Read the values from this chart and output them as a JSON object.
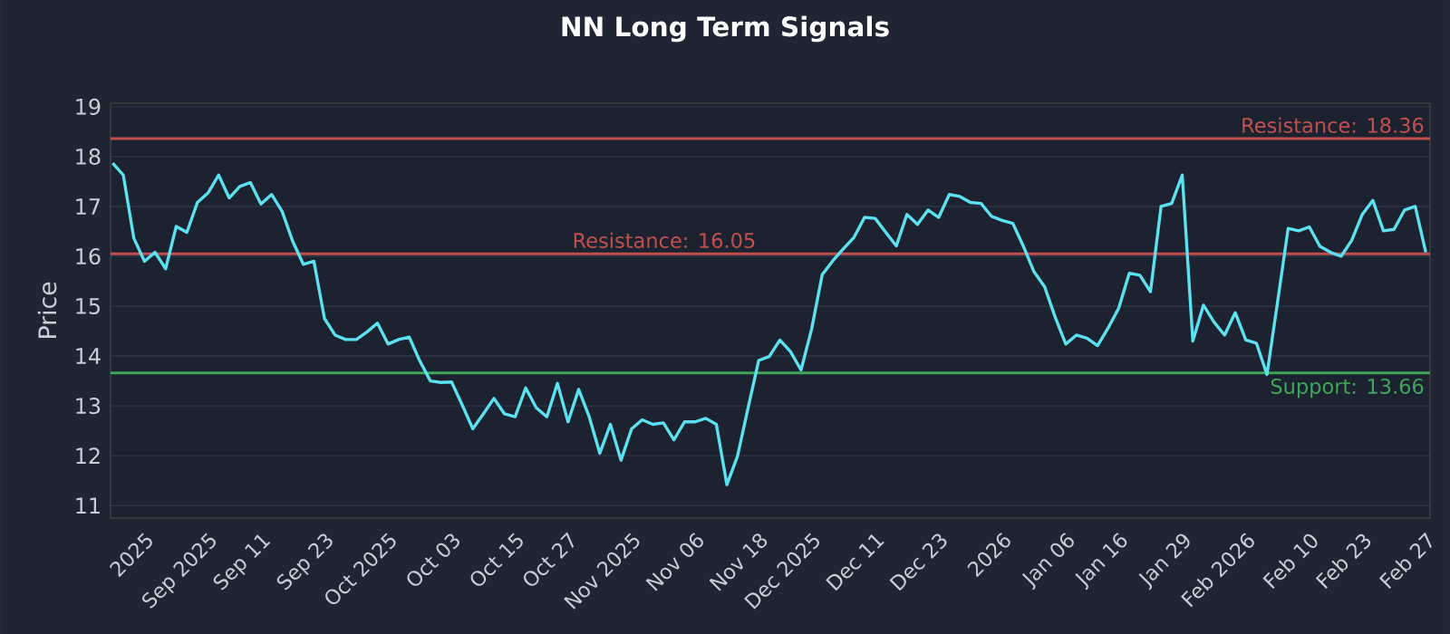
{
  "chart_data": {
    "type": "line",
    "title": "NN Long Term Signals",
    "ylabel": "Price",
    "categories": [
      null,
      null,
      null,
      "2025",
      null,
      null,
      null,
      null,
      null,
      "Sep 2025",
      null,
      null,
      null,
      null,
      "Sep 11",
      null,
      null,
      null,
      null,
      null,
      "Sep 23",
      null,
      null,
      null,
      null,
      null,
      "Oct 2025",
      null,
      null,
      null,
      null,
      null,
      "Oct 03",
      null,
      null,
      null,
      null,
      null,
      "Oct 15",
      null,
      null,
      null,
      null,
      "Oct 27",
      null,
      null,
      null,
      null,
      null,
      "Nov 2025",
      null,
      null,
      null,
      null,
      null,
      "Nov 06",
      null,
      null,
      null,
      null,
      null,
      "Nov 18",
      null,
      null,
      null,
      null,
      "Dec 2025",
      null,
      null,
      null,
      null,
      null,
      "Dec 11",
      null,
      null,
      null,
      null,
      null,
      "Dec 23",
      null,
      null,
      null,
      null,
      null,
      "2026",
      null,
      null,
      null,
      null,
      null,
      "Jan 06",
      null,
      null,
      null,
      null,
      "Jan 16",
      null,
      null,
      null,
      null,
      null,
      "Jan 29",
      null,
      null,
      null,
      null,
      null,
      "Feb 2026",
      null,
      null,
      null,
      null,
      null,
      "Feb 10",
      null,
      null,
      null,
      null,
      "Feb 23",
      null,
      null,
      null,
      null,
      null,
      "Feb 27"
    ],
    "series": [
      {
        "color": "#5ce1f0",
        "values": [
          17.87,
          17.63,
          16.36,
          15.9,
          16.08,
          15.75,
          16.6,
          16.48,
          17.08,
          17.27,
          17.63,
          17.17,
          17.4,
          17.48,
          17.05,
          17.24,
          16.9,
          16.3,
          15.84,
          15.9,
          14.75,
          14.42,
          14.33,
          14.33,
          14.48,
          14.66,
          14.24,
          14.33,
          14.38,
          13.9,
          13.5,
          13.47,
          13.48,
          13.02,
          12.54,
          12.84,
          13.15,
          12.84,
          12.78,
          13.36,
          12.96,
          12.78,
          13.45,
          12.68,
          13.33,
          12.78,
          12.05,
          12.63,
          11.91,
          12.54,
          12.72,
          12.63,
          12.66,
          12.32,
          12.68,
          12.68,
          12.75,
          12.63,
          11.42,
          11.99,
          12.96,
          13.91,
          13.99,
          14.32,
          14.09,
          13.72,
          14.54,
          15.63,
          15.91,
          16.15,
          16.38,
          16.78,
          16.76,
          16.48,
          16.21,
          16.84,
          16.64,
          16.93,
          16.78,
          17.24,
          17.2,
          17.08,
          17.06,
          16.8,
          16.72,
          16.66,
          16.2,
          15.69,
          15.39,
          14.78,
          14.24,
          14.42,
          14.36,
          14.21,
          14.56,
          14.96,
          15.66,
          15.62,
          15.29,
          17.0,
          17.06,
          17.63,
          14.3,
          15.02,
          14.68,
          14.42,
          14.87,
          14.32,
          14.26,
          13.63,
          15.08,
          16.56,
          16.51,
          16.59,
          16.2,
          16.08,
          16.0,
          16.32,
          16.84,
          17.12,
          16.51,
          16.54,
          16.93,
          17.0,
          16.08
        ]
      }
    ],
    "ylim": [
      10.75,
      19.07
    ],
    "yticks": [
      11,
      12,
      13,
      14,
      15,
      16,
      17,
      18,
      19
    ],
    "grid": "y",
    "ref_lines": [
      {
        "axis": "y",
        "value": 18.36,
        "label": "Resistance: 18.36",
        "color": "#c0504d"
      },
      {
        "axis": "y",
        "value": 16.05,
        "label": "Resistance: 16.05",
        "color": "#c0504d"
      },
      {
        "axis": "y",
        "value": 13.66,
        "label": "Support: 13.66",
        "color": "#3fa65a"
      }
    ]
  }
}
